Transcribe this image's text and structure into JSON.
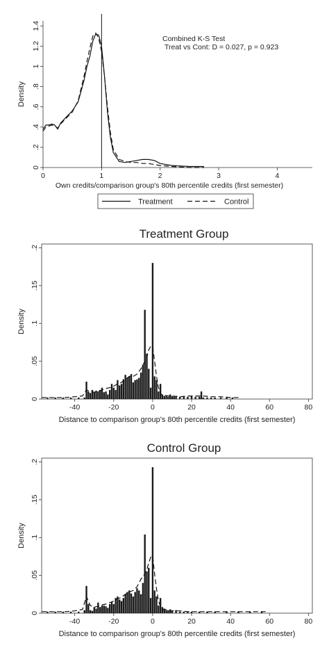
{
  "chart_data": [
    {
      "type": "line",
      "title": "",
      "xlabel": "Own credits/comparison group's 80th percentile credits (first semester)",
      "ylabel": "Density",
      "xlim": [
        0,
        4.6
      ],
      "ylim": [
        0,
        1.45
      ],
      "x_ticks": [
        "0",
        "1",
        "2",
        "3",
        "4"
      ],
      "y_ticks": [
        "0",
        ".2",
        ".4",
        ".6",
        ".8",
        "1",
        "1.2",
        "1.4"
      ],
      "reference_line_x": 1,
      "annotation": [
        "Combined K-S Test",
        "Treat vs Cont: D = 0.027, p = 0.923"
      ],
      "legend": {
        "placement": "bottom",
        "entries": [
          "Treatment",
          "Control"
        ]
      },
      "series": [
        {
          "name": "Treatment",
          "style": "solid",
          "x": [
            0,
            0.05,
            0.1,
            0.15,
            0.2,
            0.25,
            0.3,
            0.4,
            0.5,
            0.6,
            0.7,
            0.75,
            0.8,
            0.85,
            0.9,
            0.95,
            1.0,
            1.05,
            1.1,
            1.15,
            1.2,
            1.3,
            1.4,
            1.5,
            1.6,
            1.7,
            1.8,
            1.9,
            2.0,
            2.2,
            2.5,
            2.75
          ],
          "y": [
            0.38,
            0.42,
            0.42,
            0.43,
            0.42,
            0.38,
            0.44,
            0.5,
            0.56,
            0.65,
            0.86,
            1.0,
            1.1,
            1.25,
            1.32,
            1.31,
            1.2,
            0.9,
            0.55,
            0.3,
            0.15,
            0.06,
            0.05,
            0.06,
            0.07,
            0.08,
            0.08,
            0.07,
            0.04,
            0.02,
            0.01,
            0.01
          ]
        },
        {
          "name": "Control",
          "style": "dashed",
          "x": [
            0,
            0.05,
            0.1,
            0.15,
            0.2,
            0.25,
            0.3,
            0.4,
            0.5,
            0.6,
            0.7,
            0.75,
            0.8,
            0.85,
            0.9,
            0.95,
            1.0,
            1.05,
            1.1,
            1.15,
            1.2,
            1.3,
            1.4,
            1.5,
            1.6,
            1.7,
            1.8,
            1.9,
            2.0,
            2.2,
            2.5,
            2.75
          ],
          "y": [
            0.36,
            0.4,
            0.41,
            0.42,
            0.41,
            0.39,
            0.43,
            0.49,
            0.55,
            0.66,
            0.9,
            1.05,
            1.18,
            1.3,
            1.33,
            1.28,
            1.15,
            0.9,
            0.6,
            0.35,
            0.18,
            0.08,
            0.06,
            0.05,
            0.05,
            0.04,
            0.04,
            0.03,
            0.02,
            0.01,
            0.0,
            0.0
          ]
        }
      ]
    },
    {
      "type": "bar",
      "title": "Treatment Group",
      "xlabel": "Distance to comparison group's 80th percentile credits (first semester)",
      "ylabel": "Density",
      "xlim": [
        -57,
        82
      ],
      "ylim": [
        0,
        0.205
      ],
      "x_ticks": [
        "-40",
        "-20",
        "0",
        "20",
        "40",
        "60",
        "80"
      ],
      "y_ticks": [
        "0",
        ".05",
        ".1",
        ".15",
        ".2"
      ],
      "bars": {
        "x": [
          -54,
          -50,
          -46,
          -42,
          -38,
          -35,
          -34,
          -33,
          -32,
          -31,
          -30,
          -29,
          -28,
          -27,
          -26,
          -25,
          -24,
          -23,
          -22,
          -21,
          -20,
          -19,
          -18,
          -17,
          -16,
          -15,
          -14,
          -13,
          -12,
          -11,
          -10,
          -9,
          -8,
          -7,
          -6,
          -5,
          -4,
          -3,
          -2,
          -1,
          0,
          1,
          2,
          3,
          4,
          5,
          6,
          7,
          8,
          9,
          10,
          11,
          12,
          14,
          16,
          18,
          20,
          22,
          24,
          25,
          26,
          28,
          30,
          32,
          35,
          38,
          41
        ],
        "y": [
          0.002,
          0.002,
          0.002,
          0.002,
          0.002,
          0.002,
          0.023,
          0.01,
          0.008,
          0.012,
          0.009,
          0.011,
          0.01,
          0.012,
          0.015,
          0.009,
          0.01,
          0.006,
          0.012,
          0.02,
          0.015,
          0.012,
          0.025,
          0.018,
          0.02,
          0.026,
          0.032,
          0.028,
          0.03,
          0.033,
          0.022,
          0.025,
          0.026,
          0.028,
          0.035,
          0.045,
          0.118,
          0.06,
          0.04,
          0.015,
          0.18,
          0.03,
          0.025,
          0.01,
          0.02,
          0.006,
          0.004,
          0.004,
          0.003,
          0.006,
          0.004,
          0.003,
          0.004,
          0.003,
          0.003,
          0.003,
          0.004,
          0.003,
          0.003,
          0.01,
          0.002,
          0.002,
          0.002,
          0.002,
          0.002,
          0.002,
          0.002
        ]
      },
      "series": [
        {
          "style": "dashed",
          "x": [
            -57,
            -50,
            -45,
            -40,
            -36,
            -34,
            -32,
            -30,
            -28,
            -26,
            -24,
            -22,
            -20,
            -18,
            -16,
            -14,
            -12,
            -10,
            -8,
            -6,
            -4,
            -3,
            -2,
            -1,
            0,
            1,
            2,
            3,
            4,
            5,
            6,
            8,
            10,
            14,
            18,
            22,
            26,
            30,
            35,
            40,
            45
          ],
          "y": [
            0.002,
            0.002,
            0.002,
            0.003,
            0.004,
            0.012,
            0.01,
            0.009,
            0.01,
            0.012,
            0.014,
            0.015,
            0.017,
            0.02,
            0.022,
            0.026,
            0.03,
            0.03,
            0.033,
            0.04,
            0.05,
            0.055,
            0.065,
            0.07,
            0.07,
            0.05,
            0.03,
            0.015,
            0.008,
            0.004,
            0.005,
            0.004,
            0.004,
            0.003,
            0.004,
            0.004,
            0.004,
            0.003,
            0.003,
            0.002,
            0.002
          ]
        }
      ]
    },
    {
      "type": "bar",
      "title": "Control Group",
      "xlabel": "Distance to comparison group's 80th percentile credits (first semester)",
      "ylabel": "Density",
      "xlim": [
        -57,
        82
      ],
      "ylim": [
        0,
        0.205
      ],
      "x_ticks": [
        "-40",
        "-20",
        "0",
        "20",
        "40",
        "60",
        "80"
      ],
      "y_ticks": [
        "0",
        ".05",
        ".1",
        ".15",
        ".2"
      ],
      "bars": {
        "x": [
          -54,
          -50,
          -46,
          -42,
          -38,
          -35,
          -34,
          -33,
          -32,
          -31,
          -30,
          -29,
          -28,
          -27,
          -26,
          -25,
          -24,
          -23,
          -22,
          -21,
          -20,
          -19,
          -18,
          -17,
          -16,
          -15,
          -14,
          -13,
          -12,
          -11,
          -10,
          -9,
          -8,
          -7,
          -6,
          -5,
          -4,
          -3,
          -2,
          -1,
          0,
          1,
          2,
          3,
          4,
          5,
          6,
          7,
          8,
          9,
          10,
          12,
          14,
          16,
          18,
          20,
          24,
          28,
          32,
          38,
          44,
          50,
          56
        ],
        "y": [
          0.002,
          0.002,
          0.002,
          0.002,
          0.002,
          0.004,
          0.036,
          0.012,
          0.004,
          0.003,
          0.008,
          0.006,
          0.014,
          0.008,
          0.01,
          0.01,
          0.009,
          0.007,
          0.012,
          0.015,
          0.012,
          0.02,
          0.022,
          0.018,
          0.016,
          0.02,
          0.025,
          0.028,
          0.03,
          0.026,
          0.022,
          0.028,
          0.033,
          0.03,
          0.025,
          0.04,
          0.104,
          0.055,
          0.06,
          0.02,
          0.193,
          0.03,
          0.022,
          0.01,
          0.02,
          0.008,
          0.006,
          0.004,
          0.004,
          0.005,
          0.003,
          0.004,
          0.002,
          0.002,
          0.002,
          0.002,
          0.002,
          0.002,
          0.002,
          0.002,
          0.002,
          0.002,
          0.002
        ]
      },
      "series": [
        {
          "style": "dashed",
          "x": [
            -57,
            -50,
            -45,
            -40,
            -36,
            -34,
            -32,
            -30,
            -28,
            -26,
            -24,
            -22,
            -20,
            -18,
            -16,
            -14,
            -12,
            -10,
            -8,
            -6,
            -4,
            -3,
            -2,
            -1,
            0,
            1,
            2,
            3,
            4,
            5,
            6,
            8,
            10,
            14,
            18,
            22,
            26,
            30,
            35,
            40,
            50,
            58
          ],
          "y": [
            0.002,
            0.002,
            0.002,
            0.003,
            0.005,
            0.022,
            0.01,
            0.008,
            0.009,
            0.011,
            0.012,
            0.014,
            0.016,
            0.019,
            0.021,
            0.025,
            0.028,
            0.03,
            0.035,
            0.045,
            0.052,
            0.058,
            0.066,
            0.074,
            0.076,
            0.052,
            0.032,
            0.016,
            0.009,
            0.005,
            0.005,
            0.004,
            0.003,
            0.003,
            0.002,
            0.002,
            0.002,
            0.002,
            0.002,
            0.002,
            0.002,
            0.002
          ]
        }
      ]
    }
  ]
}
